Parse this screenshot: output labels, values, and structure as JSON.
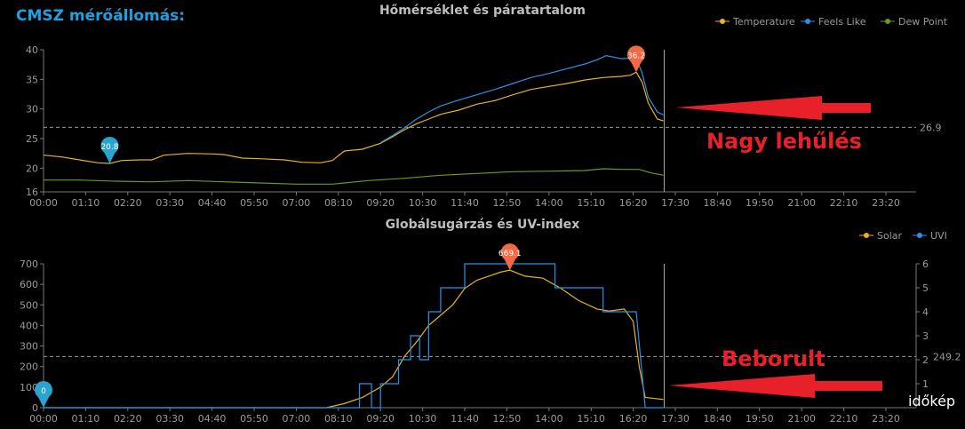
{
  "station_label": "CMSZ mérőállomás:",
  "annotations": {
    "top": "Nagy lehűlés",
    "bottom": "Beborult"
  },
  "logo": "időkép",
  "chart_data": [
    {
      "type": "line",
      "title": "Hőmérséklet és páratartalom",
      "x_unit": "minutes since 00:00",
      "xticks": [
        "00:00",
        "01:10",
        "02:20",
        "03:30",
        "04:40",
        "05:50",
        "07:00",
        "08:10",
        "09:20",
        "10:30",
        "11:40",
        "12:50",
        "14:00",
        "15:10",
        "16:20",
        "17:30",
        "18:40",
        "19:50",
        "21:00",
        "22:10",
        "23:20"
      ],
      "yticks": [
        16,
        20,
        25,
        30,
        35,
        40
      ],
      "ylim": [
        16,
        40
      ],
      "avg_line": 26.9,
      "avg_label": "26.9",
      "now_minutes": 1030,
      "legend_position": "top-right",
      "series": [
        {
          "name": "Temperature",
          "color": "#e6b41e",
          "points": [
            [
              0,
              22.2
            ],
            [
              30,
              21.9
            ],
            [
              60,
              21.4
            ],
            [
              90,
              20.9
            ],
            [
              110,
              20.8
            ],
            [
              130,
              21.3
            ],
            [
              160,
              21.4
            ],
            [
              180,
              21.4
            ],
            [
              200,
              22.2
            ],
            [
              240,
              22.5
            ],
            [
              280,
              22.4
            ],
            [
              300,
              22.3
            ],
            [
              330,
              21.7
            ],
            [
              360,
              21.6
            ],
            [
              400,
              21.4
            ],
            [
              430,
              21.0
            ],
            [
              460,
              20.9
            ],
            [
              480,
              21.3
            ],
            [
              500,
              22.9
            ],
            [
              530,
              23.2
            ],
            [
              560,
              24.2
            ],
            [
              580,
              25.3
            ],
            [
              600,
              26.5
            ],
            [
              620,
              27.5
            ],
            [
              640,
              28.3
            ],
            [
              660,
              29.1
            ],
            [
              690,
              29.8
            ],
            [
              720,
              30.8
            ],
            [
              750,
              31.4
            ],
            [
              780,
              32.4
            ],
            [
              810,
              33.3
            ],
            [
              840,
              33.8
            ],
            [
              870,
              34.3
            ],
            [
              900,
              34.9
            ],
            [
              930,
              35.3
            ],
            [
              960,
              35.5
            ],
            [
              975,
              35.7
            ],
            [
              985,
              36.2
            ],
            [
              995,
              34.5
            ],
            [
              1005,
              31
            ],
            [
              1020,
              28.3
            ],
            [
              1030,
              28.0
            ]
          ]
        },
        {
          "name": "Feels Like",
          "color": "#2f8fe8",
          "points": [
            [
              560,
              24.3
            ],
            [
              580,
              25.5
            ],
            [
              600,
              26.8
            ],
            [
              620,
              28.3
            ],
            [
              640,
              29.5
            ],
            [
              660,
              30.5
            ],
            [
              690,
              31.5
            ],
            [
              720,
              32.4
            ],
            [
              750,
              33.3
            ],
            [
              780,
              34.3
            ],
            [
              810,
              35.3
            ],
            [
              840,
              36
            ],
            [
              870,
              36.8
            ],
            [
              900,
              37.6
            ],
            [
              920,
              38.3
            ],
            [
              935,
              39
            ],
            [
              960,
              38.5
            ],
            [
              985,
              38.6
            ],
            [
              995,
              36
            ],
            [
              1005,
              32
            ],
            [
              1020,
              29.5
            ],
            [
              1030,
              29.0
            ]
          ]
        },
        {
          "name": "Dew Point",
          "color": "#6a9a1e",
          "points": [
            [
              0,
              18.0
            ],
            [
              60,
              18.0
            ],
            [
              120,
              17.8
            ],
            [
              180,
              17.7
            ],
            [
              240,
              17.9
            ],
            [
              300,
              17.7
            ],
            [
              360,
              17.5
            ],
            [
              420,
              17.3
            ],
            [
              480,
              17.3
            ],
            [
              540,
              17.9
            ],
            [
              600,
              18.3
            ],
            [
              660,
              18.8
            ],
            [
              720,
              19.1
            ],
            [
              780,
              19.4
            ],
            [
              840,
              19.5
            ],
            [
              900,
              19.6
            ],
            [
              930,
              19.9
            ],
            [
              960,
              19.8
            ],
            [
              990,
              19.8
            ],
            [
              1010,
              19.2
            ],
            [
              1030,
              18.8
            ]
          ]
        }
      ],
      "markers": [
        {
          "label": "20.8",
          "x": 110,
          "y": 20.8,
          "color": "#2aa3cf"
        },
        {
          "label": "36.2",
          "x": 985,
          "y": 36.2,
          "color": "#f26a45"
        }
      ]
    },
    {
      "type": "line",
      "title": "Globálsugárzás és UV-index",
      "x_unit": "minutes since 00:00",
      "xticks": [
        "00:00",
        "01:10",
        "02:20",
        "03:30",
        "04:40",
        "05:50",
        "07:00",
        "08:10",
        "09:20",
        "10:30",
        "11:40",
        "12:50",
        "14:00",
        "15:10",
        "16:20",
        "17:30",
        "18:40",
        "19:50",
        "21:00",
        "22:10",
        "23:20"
      ],
      "yticks": [
        0,
        100,
        200,
        300,
        400,
        500,
        600,
        700
      ],
      "ylim": [
        0,
        700
      ],
      "y2ticks": [
        1,
        2,
        3,
        4,
        5,
        6
      ],
      "y2lim": [
        0,
        6
      ],
      "avg_line": 249.2,
      "avg_label": "249.2",
      "now_minutes": 1030,
      "legend_position": "top-right",
      "series": [
        {
          "name": "Solar",
          "color": "#e6b41e",
          "axis": "left",
          "points": [
            [
              0,
              0
            ],
            [
              470,
              0
            ],
            [
              500,
              20
            ],
            [
              530,
              50
            ],
            [
              560,
              100
            ],
            [
              580,
              150
            ],
            [
              600,
              250
            ],
            [
              620,
              320
            ],
            [
              640,
              400
            ],
            [
              660,
              450
            ],
            [
              680,
              500
            ],
            [
              700,
              580
            ],
            [
              720,
              620
            ],
            [
              740,
              640
            ],
            [
              760,
              660
            ],
            [
              775,
              669
            ],
            [
              800,
              640
            ],
            [
              830,
              630
            ],
            [
              860,
              580
            ],
            [
              890,
              520
            ],
            [
              920,
              480
            ],
            [
              940,
              470
            ],
            [
              965,
              480
            ],
            [
              980,
              420
            ],
            [
              990,
              200
            ],
            [
              1000,
              50
            ],
            [
              1015,
              45
            ],
            [
              1030,
              40
            ]
          ]
        },
        {
          "name": "UVI",
          "color": "#2f8fe8",
          "axis": "right",
          "points": [
            [
              0,
              0
            ],
            [
              525,
              0
            ],
            [
              525,
              1
            ],
            [
              545,
              1
            ],
            [
              545,
              0
            ],
            [
              560,
              0
            ],
            [
              560,
              1
            ],
            [
              590,
              1
            ],
            [
              590,
              2
            ],
            [
              610,
              2
            ],
            [
              610,
              3
            ],
            [
              625,
              3
            ],
            [
              625,
              2
            ],
            [
              640,
              2
            ],
            [
              640,
              4
            ],
            [
              660,
              4
            ],
            [
              660,
              5
            ],
            [
              700,
              5
            ],
            [
              700,
              6
            ],
            [
              850,
              6
            ],
            [
              850,
              5
            ],
            [
              930,
              5
            ],
            [
              930,
              4
            ],
            [
              985,
              4
            ],
            [
              1000,
              0
            ],
            [
              1030,
              0
            ]
          ]
        }
      ],
      "markers": [
        {
          "label": "669.1",
          "x": 775,
          "y": 669.1,
          "color": "#f26a45"
        },
        {
          "label": "0",
          "x": 0,
          "y": 0,
          "color": "#2aa3cf"
        }
      ]
    }
  ]
}
